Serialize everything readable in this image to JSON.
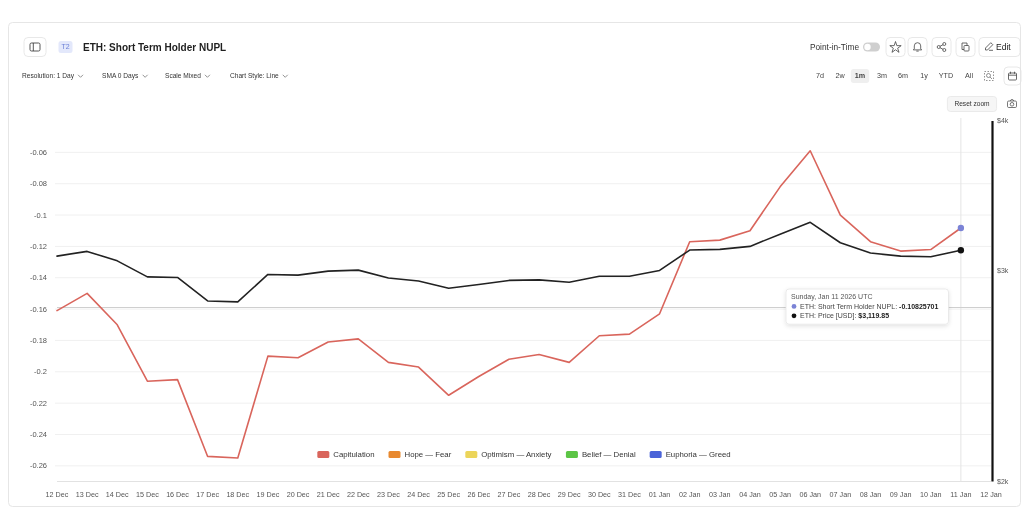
{
  "chart_data": {
    "type": "line",
    "title": "ETH: Short Term Holder NUPL",
    "x": [
      "2025-12-12",
      "2025-12-13",
      "2025-12-14",
      "2025-12-15",
      "2025-12-16",
      "2025-12-17",
      "2025-12-18",
      "2025-12-19",
      "2025-12-20",
      "2025-12-21",
      "2025-12-22",
      "2025-12-23",
      "2025-12-24",
      "2025-12-25",
      "2025-12-26",
      "2025-12-27",
      "2025-12-28",
      "2025-12-29",
      "2025-12-30",
      "2025-12-31",
      "2026-01-01",
      "2026-01-02",
      "2026-01-03",
      "2026-01-04",
      "2026-01-05",
      "2026-01-06",
      "2026-01-07",
      "2026-01-08",
      "2026-01-09",
      "2026-01-10",
      "2026-01-11"
    ],
    "xlim": [
      "2025-12-12",
      "2026-01-12"
    ],
    "xticks": [
      {
        "value": "2025-12-12",
        "label": "12 Dec"
      },
      {
        "value": "2025-12-13",
        "label": "13 Dec"
      },
      {
        "value": "2025-12-14",
        "label": "14 Dec"
      },
      {
        "value": "2025-12-15",
        "label": "15 Dec"
      },
      {
        "value": "2025-12-16",
        "label": "16 Dec"
      },
      {
        "value": "2025-12-17",
        "label": "17 Dec"
      },
      {
        "value": "2025-12-18",
        "label": "18 Dec"
      },
      {
        "value": "2025-12-19",
        "label": "19 Dec"
      },
      {
        "value": "2025-12-20",
        "label": "20 Dec"
      },
      {
        "value": "2025-12-21",
        "label": "21 Dec"
      },
      {
        "value": "2025-12-22",
        "label": "22 Dec"
      },
      {
        "value": "2025-12-23",
        "label": "23 Dec"
      },
      {
        "value": "2025-12-24",
        "label": "24 Dec"
      },
      {
        "value": "2025-12-25",
        "label": "25 Dec"
      },
      {
        "value": "2025-12-26",
        "label": "26 Dec"
      },
      {
        "value": "2025-12-27",
        "label": "27 Dec"
      },
      {
        "value": "2025-12-28",
        "label": "28 Dec"
      },
      {
        "value": "2025-12-29",
        "label": "29 Dec"
      },
      {
        "value": "2025-12-30",
        "label": "30 Dec"
      },
      {
        "value": "2025-12-31",
        "label": "31 Dec"
      },
      {
        "value": "2026-01-01",
        "label": "01 Jan"
      },
      {
        "value": "2026-01-02",
        "label": "02 Jan"
      },
      {
        "value": "2026-01-03",
        "label": "03 Jan"
      },
      {
        "value": "2026-01-04",
        "label": "04 Jan"
      },
      {
        "value": "2026-01-05",
        "label": "05 Jan"
      },
      {
        "value": "2026-01-06",
        "label": "06 Jan"
      },
      {
        "value": "2026-01-07",
        "label": "07 Jan"
      },
      {
        "value": "2026-01-08",
        "label": "08 Jan"
      },
      {
        "value": "2026-01-09",
        "label": "09 Jan"
      },
      {
        "value": "2026-01-10",
        "label": "10 Jan"
      },
      {
        "value": "2026-01-11",
        "label": "11 Jan"
      },
      {
        "value": "2026-01-12",
        "label": "12 Jan"
      }
    ],
    "ylim": [
      -0.27,
      -0.04
    ],
    "yticks": [
      -0.26,
      -0.24,
      -0.22,
      -0.2,
      -0.18,
      -0.16,
      -0.14,
      -0.12,
      -0.1,
      -0.08,
      -0.06
    ],
    "y2lim": [
      2000,
      4000
    ],
    "y2ticks": [
      {
        "value": 2000,
        "label": "$2k"
      },
      {
        "value": 3000,
        "label": "$3k"
      },
      {
        "value": 4000,
        "label": "$4k"
      }
    ],
    "log": "y2",
    "grid": "y",
    "legend": "bottom",
    "series": [
      {
        "name": "Capitulation",
        "color": "#d9655c",
        "values": [
          -0.161,
          -0.15,
          -0.17,
          -0.206,
          -0.205,
          -0.254,
          -0.255,
          -0.19,
          -0.191,
          -0.181,
          -0.179,
          -0.194,
          -0.197,
          -0.215,
          -0.203,
          -0.192,
          -0.189,
          -0.194,
          -0.177,
          -0.176,
          -0.163,
          -0.117,
          -0.116,
          -0.11,
          -0.082,
          -0.059,
          -0.1,
          -0.117,
          -0.123,
          -0.122,
          -0.10825701
        ]
      },
      {
        "color": "#222222",
        "axis": "y2",
        "values": [
          3085,
          3113,
          3057,
          2964,
          2961,
          2830,
          2825,
          2978,
          2974,
          2997,
          3003,
          2958,
          2941,
          2900,
          2921,
          2944,
          2947,
          2934,
          2968,
          2968,
          3001,
          3121,
          3125,
          3143,
          3218,
          3292,
          3165,
          3103,
          3085,
          3081,
          3119.85
        ]
      },
      {
        "name": "Hope — Fear",
        "color": "#e8892f",
        "values": [
          null,
          null,
          null,
          null,
          null,
          null,
          null,
          null,
          null,
          null,
          null,
          null,
          null,
          null,
          null,
          null,
          null,
          null,
          null,
          null,
          null,
          null,
          null,
          null,
          null,
          null,
          null,
          null,
          null,
          null,
          null
        ]
      },
      {
        "name": "Optimism — Anxiety",
        "color": "#ecd55a",
        "values": [
          null,
          null,
          null,
          null,
          null,
          null,
          null,
          null,
          null,
          null,
          null,
          null,
          null,
          null,
          null,
          null,
          null,
          null,
          null,
          null,
          null,
          null,
          null,
          null,
          null,
          null,
          null,
          null,
          null,
          null,
          null
        ]
      },
      {
        "name": "Belief — Denial",
        "color": "#5cc545",
        "values": [
          null,
          null,
          null,
          null,
          null,
          null,
          null,
          null,
          null,
          null,
          null,
          null,
          null,
          null,
          null,
          null,
          null,
          null,
          null,
          null,
          null,
          null,
          null,
          null,
          null,
          null,
          null,
          null,
          null,
          null,
          null
        ]
      },
      {
        "name": "Euphoria — Greed",
        "color": "#4a63d8",
        "values": [
          null,
          null,
          null,
          null,
          null,
          null,
          null,
          null,
          null,
          null,
          null,
          null,
          null,
          null,
          null,
          null,
          null,
          null,
          null,
          null,
          null,
          null,
          null,
          null,
          null,
          null,
          null,
          null,
          null,
          null,
          null
        ]
      },
      {
        "type": "scatter",
        "color": "#7b83d6",
        "marker": "circle",
        "x": [
          "2026-01-11"
        ],
        "values": [
          -0.10825701
        ]
      },
      {
        "type": "scatter",
        "color": "#111111",
        "marker": "circle",
        "axis": "y2",
        "x": [
          "2026-01-11"
        ],
        "values": [
          3119.85
        ]
      }
    ],
    "ref_lines": [
      {
        "axis": "x",
        "value": "2026-01-11",
        "color": "#e4e4e4"
      },
      {
        "axis": "y",
        "value": -0.159,
        "color": "#cfcfcf"
      }
    ],
    "annotations": [
      "T2",
      "Point-in-Time",
      "Edit",
      "Resolution: 1 Day",
      "SMA 0 Days",
      "Scale Mixed",
      "Chart Style: Line",
      "7d",
      "2w",
      "1m",
      "3m",
      "6m",
      "1y",
      "YTD",
      "All",
      "Reset zoom",
      "Sunday, Jan 11 2026 UTC",
      "ETH: Short Term Holder NUPL: -0.10825701",
      "ETH: Price [USD]: $3,119.85"
    ]
  }
}
